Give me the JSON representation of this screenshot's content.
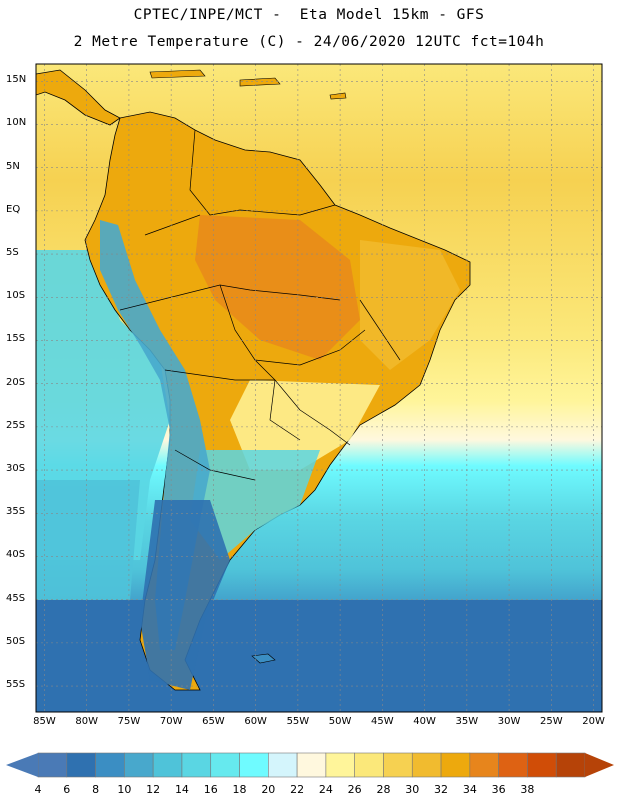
{
  "header": {
    "line1": "CPTEC/INPE/MCT -  Eta Model 15km - GFS",
    "line2": "2 Metre Temperature (C) - 24/06/2020 12UTC fct=104h"
  },
  "axes": {
    "lat_labels": [
      "15N",
      "10N",
      "5N",
      "EQ",
      "5S",
      "10S",
      "15S",
      "20S",
      "25S",
      "30S",
      "35S",
      "40S",
      "45S",
      "50S",
      "55S"
    ],
    "lat_values": [
      15,
      10,
      5,
      0,
      -5,
      -10,
      -15,
      -20,
      -25,
      -30,
      -35,
      -40,
      -45,
      -50,
      -55
    ],
    "lon_labels": [
      "85W",
      "80W",
      "75W",
      "70W",
      "65W",
      "60W",
      "55W",
      "50W",
      "45W",
      "40W",
      "35W",
      "30W",
      "25W",
      "20W"
    ],
    "lon_values": [
      -85,
      -80,
      -75,
      -70,
      -65,
      -60,
      -55,
      -50,
      -45,
      -40,
      -35,
      -30,
      -25,
      -20
    ],
    "lon_range": [
      -86,
      -19
    ],
    "lat_range": [
      -58,
      17
    ]
  },
  "colorbar": {
    "labels": [
      "4",
      "6",
      "8",
      "10",
      "12",
      "14",
      "16",
      "18",
      "20",
      "22",
      "24",
      "26",
      "28",
      "30",
      "32",
      "34",
      "36",
      "38"
    ],
    "colors": [
      "#4a7ab6",
      "#2f71b0",
      "#3b8ec3",
      "#48a8cc",
      "#4fc3d9",
      "#5ad6e3",
      "#66e9ee",
      "#6ffbff",
      "#d4f5fc",
      "#fff8de",
      "#fff59a",
      "#fbe87a",
      "#f6d151",
      "#f1bb2f",
      "#eda90d",
      "#e7851c",
      "#de6213",
      "#d04d07",
      "#b64308"
    ]
  },
  "regions": {
    "ocean_north": "#f6d151",
    "ocean_south": "#3b8ec3",
    "continent_hot": "#eda90d",
    "andes_cold": "#5ad6e3",
    "patagonia": "#2f71b0"
  }
}
